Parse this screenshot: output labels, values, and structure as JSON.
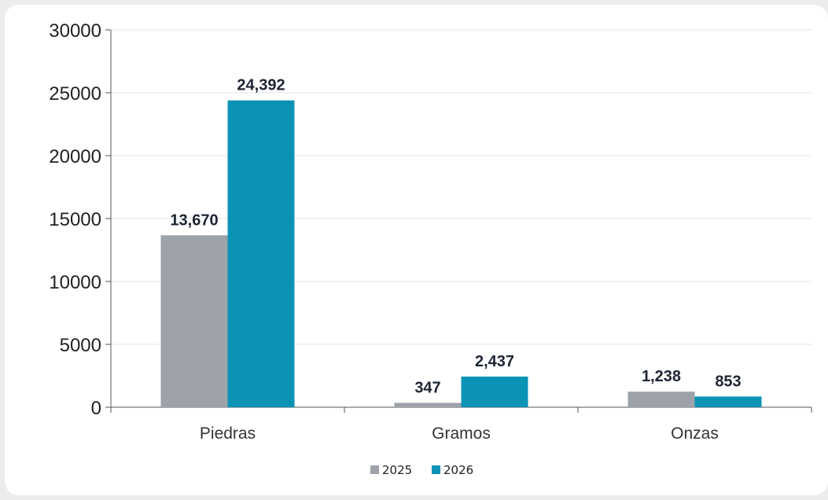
{
  "chart_data": {
    "type": "bar",
    "categories": [
      "Piedras",
      "Gramos",
      "Onzas"
    ],
    "series": [
      {
        "name": "2025",
        "values": [
          13670,
          347,
          1238
        ],
        "labels": [
          "13,670",
          "347",
          "1,238"
        ],
        "color": "#9da2ab"
      },
      {
        "name": "2026",
        "values": [
          24392,
          2437,
          853
        ],
        "labels": [
          "24,392",
          "2,437",
          "853"
        ],
        "color": "#0b93b6"
      }
    ],
    "yticks": [
      "0",
      "5000",
      "10000",
      "15000",
      "20000",
      "25000",
      "30000"
    ],
    "ylim": [
      0,
      30000
    ],
    "grid": true,
    "legend": "bottom-center"
  }
}
